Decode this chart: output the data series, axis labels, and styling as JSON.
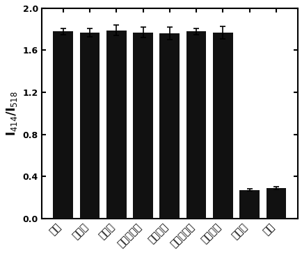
{
  "categories": [
    "空白",
    "金霨素",
    "土霨素",
    "米开金霨素",
    "氯四环素",
    "磺胺土霨素",
    "氨磺环素",
    "四环素",
    "混合"
  ],
  "values": [
    1.78,
    1.77,
    1.79,
    1.77,
    1.76,
    1.78,
    1.77,
    0.27,
    0.29
  ],
  "errors": [
    0.03,
    0.04,
    0.05,
    0.05,
    0.06,
    0.03,
    0.06,
    0.01,
    0.015
  ],
  "bar_color": "#111111",
  "bar_width": 0.75,
  "ylim": [
    0.0,
    2.0
  ],
  "yticks": [
    0.0,
    0.4,
    0.8,
    1.2,
    1.6,
    2.0
  ],
  "ylabel": "I$_{414}$/I$_{518}$",
  "background_color": "#ffffff",
  "tick_label_fontsize": 9,
  "ylabel_fontsize": 12
}
